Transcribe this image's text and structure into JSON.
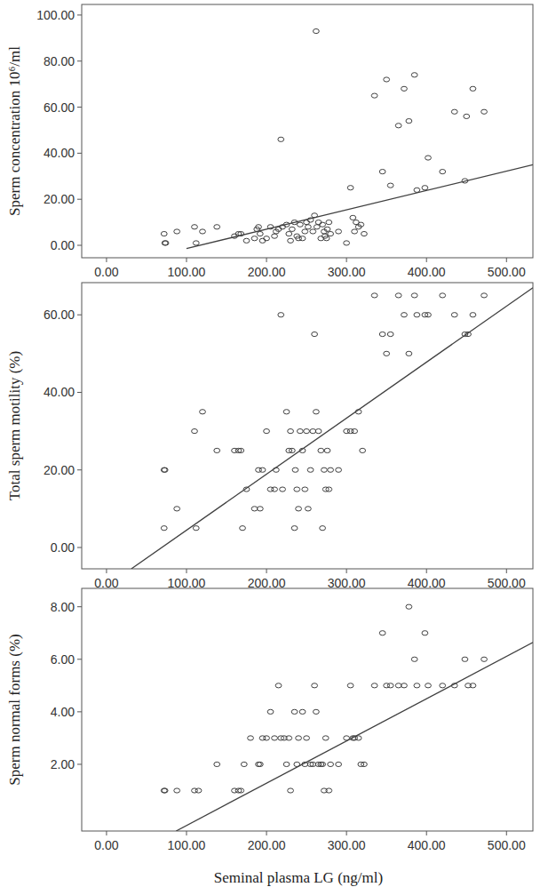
{
  "chart_data": [
    {
      "type": "scatter",
      "ylabel": "Sperm concentration 10⁶/ml",
      "xlim": [
        -31,
        533
      ],
      "ylim": [
        -5.4,
        104.6
      ],
      "xticks": [
        {
          "value": 0,
          "label": "0.00"
        },
        {
          "value": 100,
          "label": "100.00"
        },
        {
          "value": 200,
          "label": "200.00"
        },
        {
          "value": 300,
          "label": "300.00"
        },
        {
          "value": 400,
          "label": "400.00"
        },
        {
          "value": 500,
          "label": "500.00"
        }
      ],
      "yticks": [
        {
          "value": 0,
          "label": "0.00"
        },
        {
          "value": 20,
          "label": "20.00"
        },
        {
          "value": 40,
          "label": "40.00"
        },
        {
          "value": 60,
          "label": "60.00"
        },
        {
          "value": 80,
          "label": "80.00"
        },
        {
          "value": 100,
          "label": "100.00"
        }
      ],
      "series": [
        {
          "type": "scatter",
          "marker": "circle",
          "color": "#404040",
          "x": [
            72,
            73,
            74,
            88,
            110,
            112,
            120,
            138,
            160,
            165,
            168,
            175,
            185,
            188,
            190,
            192,
            195,
            200,
            205,
            210,
            212,
            215,
            218,
            220,
            225,
            228,
            230,
            232,
            235,
            238,
            240,
            242,
            245,
            248,
            250,
            252,
            255,
            258,
            260,
            262,
            263,
            265,
            268,
            270,
            272,
            273,
            275,
            276,
            278,
            280,
            290,
            300,
            305,
            308,
            310,
            312,
            315,
            318,
            322,
            335,
            345,
            350,
            355,
            365,
            372,
            378,
            385,
            388,
            398,
            402,
            420,
            435,
            448,
            450,
            458,
            472
          ],
          "values": [
            5,
            1,
            1,
            6,
            8,
            1,
            6,
            8,
            4,
            5,
            5,
            2,
            3,
            7,
            8,
            5,
            2,
            3,
            8,
            4,
            6,
            7,
            46,
            8,
            9,
            5,
            2,
            7,
            10,
            4,
            3,
            9,
            3,
            6,
            10,
            8,
            11,
            6,
            13,
            93,
            8,
            10,
            3,
            9,
            6,
            4,
            3,
            7,
            10,
            5,
            6,
            1,
            25,
            12,
            6,
            10,
            8,
            9,
            5,
            65,
            32,
            72,
            26,
            52,
            68,
            54,
            74,
            24,
            25,
            38,
            32,
            58,
            28,
            56,
            68,
            58
          ]
        },
        {
          "type": "line",
          "line_style": "solid",
          "color": "#404040",
          "x": [
            100,
            533
          ],
          "values": [
            -1.4,
            35
          ]
        }
      ]
    },
    {
      "type": "scatter",
      "ylabel": "Total sperm motility (%)",
      "xlim": [
        -31,
        533
      ],
      "ylim": [
        -5.5,
        68.3
      ],
      "xticks": [
        {
          "value": 0,
          "label": "0.00"
        },
        {
          "value": 100,
          "label": "100.00"
        },
        {
          "value": 200,
          "label": "200.00"
        },
        {
          "value": 300,
          "label": "300.00"
        },
        {
          "value": 400,
          "label": "400.00"
        },
        {
          "value": 500,
          "label": "500.00"
        }
      ],
      "yticks": [
        {
          "value": 0,
          "label": "0.00"
        },
        {
          "value": 20,
          "label": "20.00"
        },
        {
          "value": 40,
          "label": "40.00"
        },
        {
          "value": 60,
          "label": "60.00"
        }
      ],
      "series": [
        {
          "type": "scatter",
          "marker": "circle",
          "color": "#404040",
          "x": [
            72,
            73,
            72,
            88,
            110,
            112,
            120,
            138,
            160,
            165,
            168,
            170,
            175,
            185,
            190,
            192,
            195,
            200,
            205,
            210,
            212,
            218,
            220,
            225,
            228,
            230,
            232,
            235,
            236,
            238,
            240,
            242,
            245,
            248,
            250,
            252,
            255,
            258,
            260,
            262,
            265,
            268,
            270,
            272,
            274,
            276,
            278,
            280,
            290,
            300,
            305,
            310,
            315,
            320,
            335,
            345,
            350,
            355,
            365,
            372,
            378,
            385,
            388,
            398,
            402,
            420,
            435,
            448,
            452,
            458,
            472
          ],
          "values": [
            20,
            20,
            5,
            10,
            30,
            5,
            35,
            25,
            25,
            25,
            25,
            5,
            15,
            10,
            20,
            10,
            20,
            30,
            15,
            15,
            20,
            60,
            15,
            35,
            25,
            30,
            25,
            5,
            20,
            15,
            10,
            30,
            25,
            15,
            30,
            10,
            20,
            30,
            55,
            35,
            30,
            25,
            5,
            20,
            15,
            25,
            15,
            20,
            20,
            30,
            30,
            30,
            35,
            25,
            65,
            55,
            50,
            55,
            65,
            60,
            50,
            65,
            60,
            60,
            60,
            65,
            60,
            55,
            55,
            60,
            65
          ]
        },
        {
          "type": "line",
          "line_style": "solid",
          "color": "#404040",
          "x": [
            31,
            533
          ],
          "values": [
            -5.5,
            67
          ]
        }
      ]
    },
    {
      "type": "scatter",
      "ylabel": "Sperm normal forms (%)",
      "xlabel": "Seminal plasma LG (ng/ml)",
      "xlim": [
        -31,
        533
      ],
      "ylim": [
        -0.54,
        8.7
      ],
      "xticks": [
        {
          "value": 0,
          "label": "0.00"
        },
        {
          "value": 100,
          "label": "100.00"
        },
        {
          "value": 200,
          "label": "200.00"
        },
        {
          "value": 300,
          "label": "300.00"
        },
        {
          "value": 400,
          "label": "400.00"
        },
        {
          "value": 500,
          "label": "500.00"
        }
      ],
      "yticks": [
        {
          "value": 2,
          "label": "2.00"
        },
        {
          "value": 4,
          "label": "4.00"
        },
        {
          "value": 6,
          "label": "6.00"
        },
        {
          "value": 8,
          "label": "8.00"
        }
      ],
      "series": [
        {
          "type": "scatter",
          "marker": "circle",
          "color": "#404040",
          "x": [
            72,
            73,
            88,
            110,
            115,
            138,
            160,
            165,
            168,
            172,
            180,
            190,
            192,
            195,
            200,
            205,
            210,
            215,
            218,
            222,
            225,
            228,
            230,
            235,
            238,
            240,
            245,
            248,
            250,
            255,
            258,
            260,
            262,
            265,
            268,
            270,
            272,
            274,
            278,
            280,
            290,
            300,
            305,
            308,
            310,
            315,
            318,
            322,
            335,
            345,
            350,
            355,
            365,
            372,
            378,
            385,
            388,
            398,
            402,
            420,
            435,
            448,
            452,
            458,
            472
          ],
          "values": [
            1,
            1,
            1,
            1,
            1,
            2,
            1,
            1,
            1,
            2,
            3,
            2,
            2,
            3,
            3,
            4,
            3,
            5,
            3,
            3,
            2,
            3,
            1,
            4,
            2,
            3,
            4,
            2,
            3,
            2,
            2,
            5,
            4,
            2,
            2,
            2,
            1,
            3,
            1,
            2,
            2,
            3,
            5,
            3,
            3,
            3,
            2,
            2,
            5,
            7,
            5,
            5,
            5,
            5,
            8,
            6,
            5,
            7,
            5,
            5,
            5,
            6,
            5,
            5,
            6
          ]
        },
        {
          "type": "line",
          "line_style": "solid",
          "color": "#404040",
          "x": [
            87,
            533
          ],
          "values": [
            -0.54,
            6.64
          ]
        }
      ]
    }
  ]
}
